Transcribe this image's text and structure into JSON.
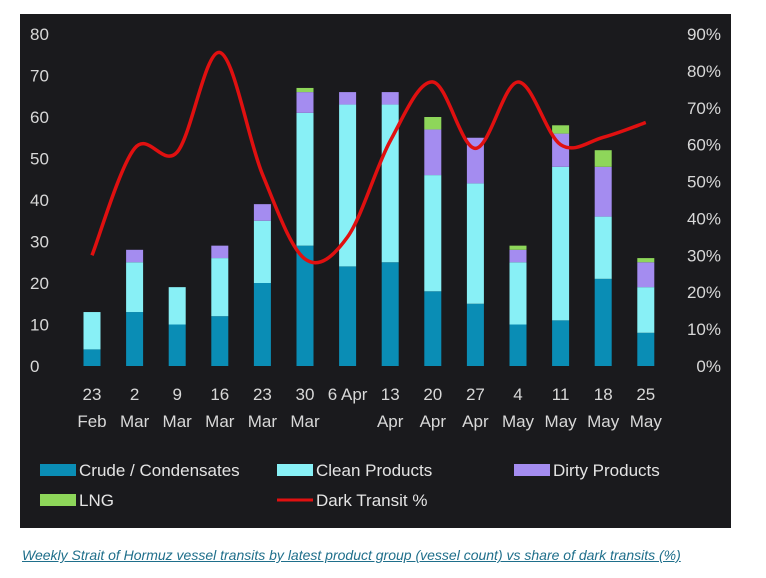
{
  "caption": "Weekly Strait of Hormuz vessel transits by latest product group (vessel count) vs share of dark transits (%)",
  "chart_data": {
    "type": "bar",
    "stacked": true,
    "categories": [
      [
        "23",
        "Feb"
      ],
      [
        "2",
        "Mar"
      ],
      [
        "9",
        "Mar"
      ],
      [
        "16",
        "Mar"
      ],
      [
        "23",
        "Mar"
      ],
      [
        "30",
        "Mar"
      ],
      [
        "6 Apr",
        ""
      ],
      [
        "13",
        "Apr"
      ],
      [
        "20",
        "Apr"
      ],
      [
        "27",
        "Apr"
      ],
      [
        "4",
        "May"
      ],
      [
        "11",
        "May"
      ],
      [
        "18",
        "May"
      ],
      [
        "25",
        "May"
      ]
    ],
    "y_left": {
      "ticks": [
        "0",
        "10",
        "20",
        "30",
        "40",
        "50",
        "60",
        "70",
        "80"
      ],
      "range": [
        0,
        80
      ]
    },
    "y_right": {
      "ticks": [
        "0%",
        "10%",
        "20%",
        "30%",
        "40%",
        "50%",
        "60%",
        "70%",
        "80%",
        "90%"
      ],
      "range": [
        0,
        90
      ]
    },
    "grid": false,
    "legend_position": "bottom",
    "series": [
      {
        "name": "Crude / Condensates",
        "color": "#0a8db5",
        "values": [
          4,
          13,
          10,
          12,
          20,
          29,
          24,
          25,
          18,
          15,
          10,
          11,
          21,
          8
        ]
      },
      {
        "name": "Clean Products",
        "color": "#88f0f6",
        "values": [
          9,
          12,
          9,
          14,
          15,
          32,
          39,
          38,
          28,
          29,
          15,
          37,
          15,
          11
        ]
      },
      {
        "name": "Dirty Products",
        "color": "#a48cf0",
        "values": [
          0,
          3,
          0,
          3,
          4,
          5,
          3,
          3,
          11,
          11,
          3,
          8,
          12,
          6
        ]
      },
      {
        "name": "LNG",
        "color": "#8ed65a",
        "values": [
          0,
          0,
          0,
          0,
          0,
          1,
          0,
          0,
          3,
          0,
          1,
          2,
          4,
          1
        ]
      }
    ],
    "line_series": {
      "name": "Dark Transit %",
      "color": "#e01010",
      "axis": "right",
      "values": [
        30,
        59,
        58,
        85,
        52,
        29,
        35,
        61,
        77,
        59,
        77,
        60,
        62,
        66
      ]
    }
  }
}
